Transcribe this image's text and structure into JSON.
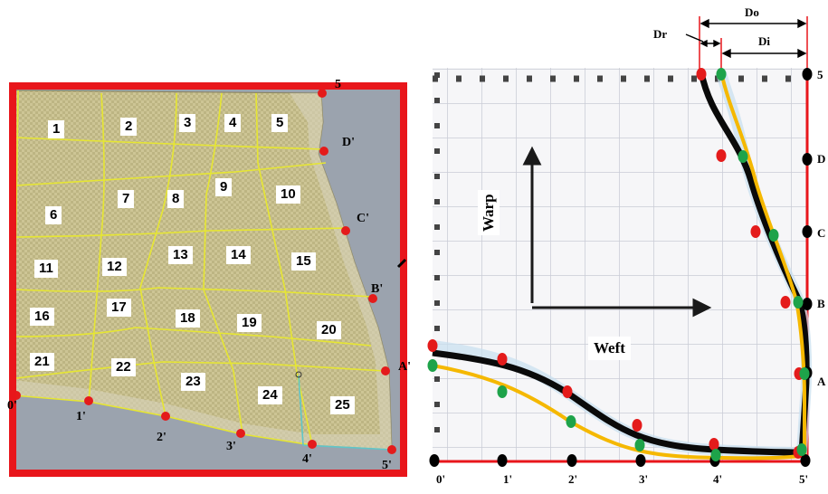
{
  "left_panel": {
    "cells": [
      "1",
      "2",
      "3",
      "4",
      "5",
      "6",
      "7",
      "8",
      "9",
      "10",
      "11",
      "12",
      "13",
      "14",
      "15",
      "16",
      "17",
      "18",
      "19",
      "20",
      "21",
      "22",
      "23",
      "24",
      "25"
    ],
    "edge_points": [
      "5",
      "D'",
      "C'",
      "B'",
      "A'",
      "5'",
      "4'",
      "3'",
      "2'",
      "1'",
      "0'"
    ]
  },
  "right_panel": {
    "labels": {
      "warp": "Warp",
      "weft": "Weft",
      "do": "Do",
      "di": "Di",
      "dr": "Dr"
    },
    "bottom_ticks": [
      "0'",
      "1'",
      "2'",
      "3'",
      "4'",
      "5'"
    ],
    "right_ticks": [
      "5",
      "D",
      "C",
      "B",
      "A"
    ]
  },
  "colors": {
    "frame_red": "#e8161b",
    "outer_curve": "#0a0a0a",
    "inner_curve": "#f5b800",
    "marker_red": "#e41b1b",
    "marker_green": "#1ea34a",
    "marker_black": "#000000",
    "fabric": "#cfc79a",
    "grid_yellow": "#e6e632",
    "panel_bg": "#9aa2ae"
  }
}
